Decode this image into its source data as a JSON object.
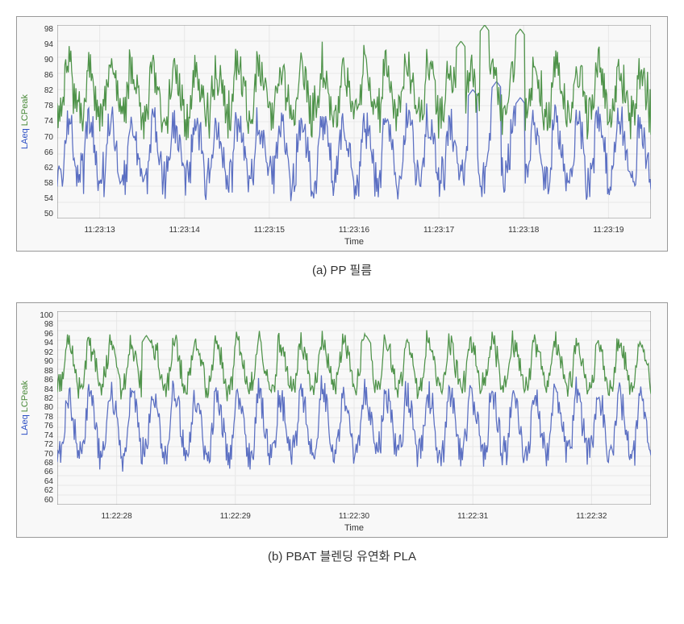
{
  "charts": [
    {
      "caption_prefix": "(a) ",
      "caption_text": "PP 필름",
      "type": "line-timeseries-dual",
      "ylim": [
        50,
        98
      ],
      "ytick_step": 4,
      "yticks": [
        50,
        54,
        58,
        62,
        66,
        70,
        74,
        78,
        82,
        86,
        90,
        94,
        98
      ],
      "x_title": "Time",
      "y_titles": [
        "LAeq",
        "LCPeak"
      ],
      "y_title_colors": [
        "#2b4ec4",
        "#4a8a3a"
      ],
      "xticks": [
        "11:23:13",
        "11:23:14",
        "11:23:15",
        "11:23:16",
        "11:23:17",
        "11:23:18",
        "11:23:19"
      ],
      "background_color": "#f8f8f8",
      "grid_color": "#e8e8e8",
      "series": [
        {
          "name": "LAeq",
          "color": "#5b6fc2",
          "stroke_width": 1.2,
          "base": 68,
          "amp_low": 9,
          "amp_high": 9,
          "noise": 0.5,
          "peaks": [
            [
              0.7,
              82
            ],
            [
              0.74,
              84
            ],
            [
              0.78,
              80
            ]
          ]
        },
        {
          "name": "LCPeak",
          "color": "#4f934a",
          "stroke_width": 1.2,
          "base": 82,
          "amp_low": 7,
          "amp_high": 8,
          "noise": 0.6,
          "peaks": [
            [
              0.72,
              98
            ],
            [
              0.78,
              97
            ],
            [
              0.68,
              94
            ]
          ]
        }
      ]
    },
    {
      "caption_prefix": "(b) ",
      "caption_text": "PBAT 블렌딩 유연화 PLA",
      "type": "line-timeseries-dual",
      "ylim": [
        60,
        100
      ],
      "ytick_step": 2,
      "yticks": [
        60,
        62,
        64,
        66,
        68,
        70,
        72,
        74,
        76,
        78,
        80,
        82,
        84,
        86,
        88,
        90,
        92,
        94,
        96,
        98,
        100
      ],
      "x_title": "Time",
      "y_titles": [
        "LAeq",
        "LCPeak"
      ],
      "y_title_colors": [
        "#2b4ec4",
        "#4a8a3a"
      ],
      "xticks": [
        "11:22:28",
        "11:22:29",
        "11:22:30",
        "11:22:31",
        "11:22:32"
      ],
      "background_color": "#f8f8f8",
      "grid_color": "#e8e8e8",
      "series": [
        {
          "name": "LAeq",
          "color": "#5b6fc2",
          "stroke_width": 1.2,
          "base": 78,
          "amp_low": 8,
          "amp_high": 7,
          "noise": 0.4,
          "peaks": []
        },
        {
          "name": "LCPeak",
          "color": "#4f934a",
          "stroke_width": 1.2,
          "base": 90,
          "amp_low": 6,
          "amp_high": 5,
          "noise": 0.4,
          "peaks": [
            [
              0.15,
              95
            ],
            [
              0.52,
              95
            ]
          ]
        }
      ]
    }
  ]
}
